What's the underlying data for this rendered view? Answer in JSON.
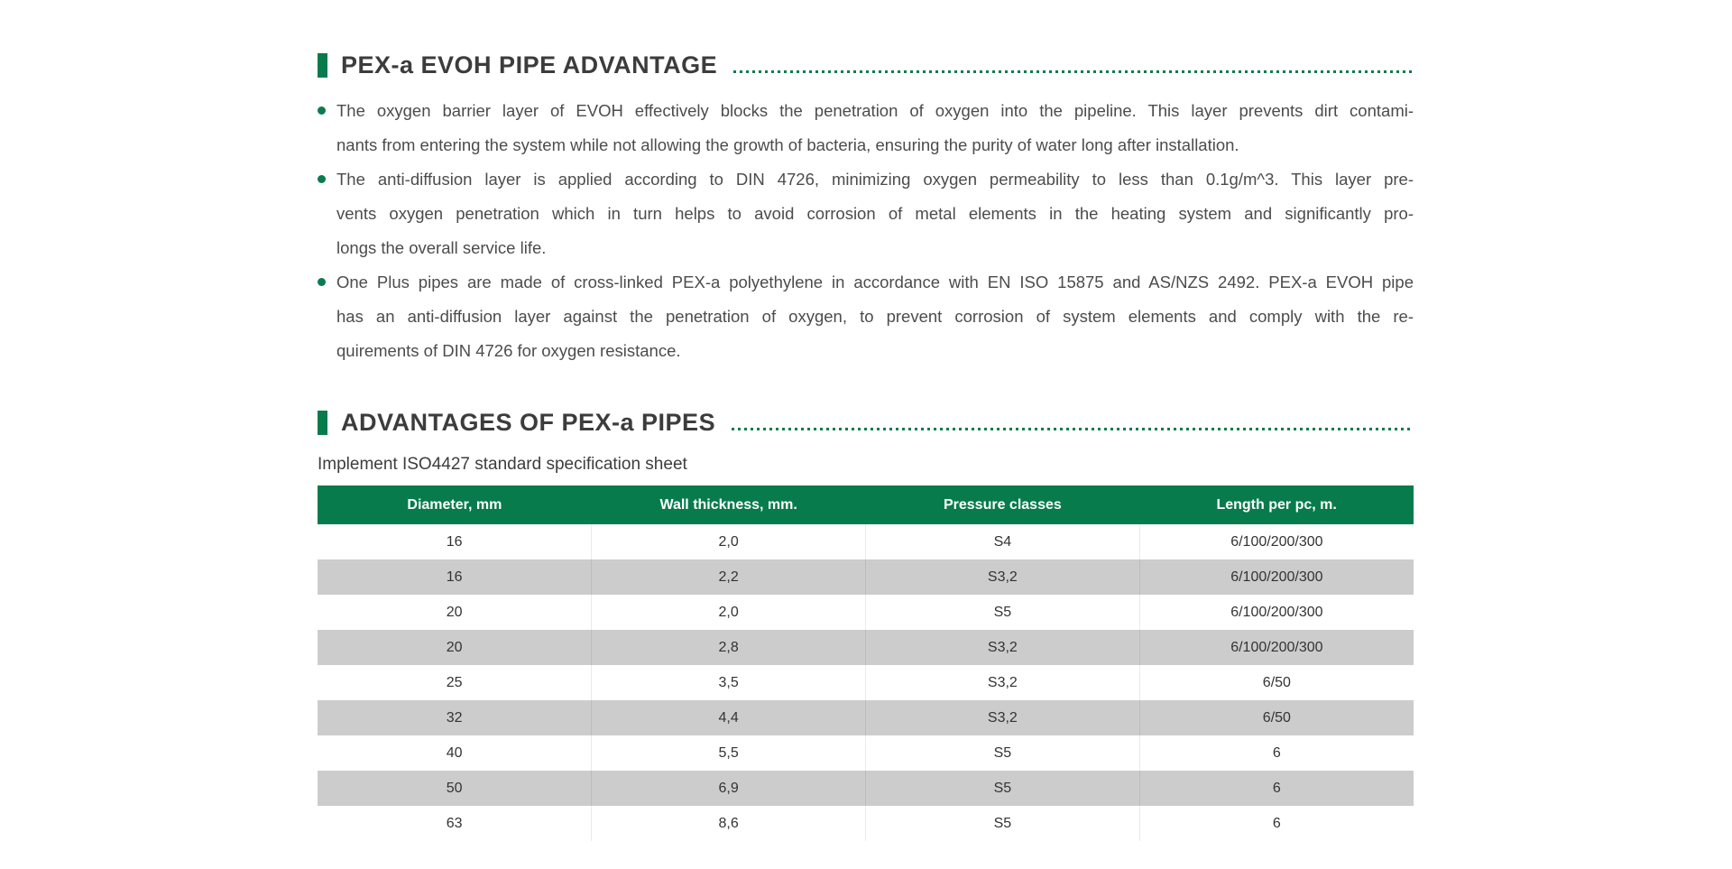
{
  "accent_color": "#077b4c",
  "row_stripe_color": "#cccccc",
  "section1": {
    "title": "PEX-a EVOH PIPE ADVANTAGE",
    "bullets": [
      {
        "lines": [
          "The oxygen barrier layer of EVOH effectively blocks the penetration of oxygen into the pipeline. This layer prevents dirt contami-",
          "nants from entering the system while not allowing the growth of bacteria, ensuring the purity of water long after installation."
        ]
      },
      {
        "lines": [
          "The anti-diffusion layer is applied according to DIN 4726, minimizing oxygen permeability to less than 0.1g/m^3. This layer pre-",
          "vents oxygen penetration which in turn helps to avoid corrosion of metal elements in the heating system and significantly pro-",
          "longs the overall service life."
        ]
      },
      {
        "lines": [
          "One Plus pipes are made of cross-linked PEX-a polyethylene in accordance with EN ISO 15875 and AS/NZS 2492. PEX-a EVOH pipe",
          "has an anti-diffusion layer against the penetration of oxygen, to prevent corrosion of system elements and comply with the re-",
          "quirements of DIN 4726 for oxygen resistance."
        ]
      }
    ]
  },
  "section2": {
    "title": "ADVANTAGES OF PEX-a PIPES",
    "subtitle": "Implement ISO4427 standard specification sheet",
    "table": {
      "headers": [
        "Diameter, mm",
        "Wall thickness, mm.",
        "Pressure classes",
        "Length per pc, m."
      ],
      "rows": [
        [
          "16",
          "2,0",
          "S4",
          "6/100/200/300"
        ],
        [
          "16",
          "2,2",
          "S3,2",
          "6/100/200/300"
        ],
        [
          "20",
          "2,0",
          "S5",
          "6/100/200/300"
        ],
        [
          "20",
          "2,8",
          "S3,2",
          "6/100/200/300"
        ],
        [
          "25",
          "3,5",
          "S3,2",
          "6/50"
        ],
        [
          "32",
          "4,4",
          "S3,2",
          "6/50"
        ],
        [
          "40",
          "5,5",
          "S5",
          "6"
        ],
        [
          "50",
          "6,9",
          "S5",
          "6"
        ],
        [
          "63",
          "8,6",
          "S5",
          "6"
        ]
      ]
    }
  }
}
